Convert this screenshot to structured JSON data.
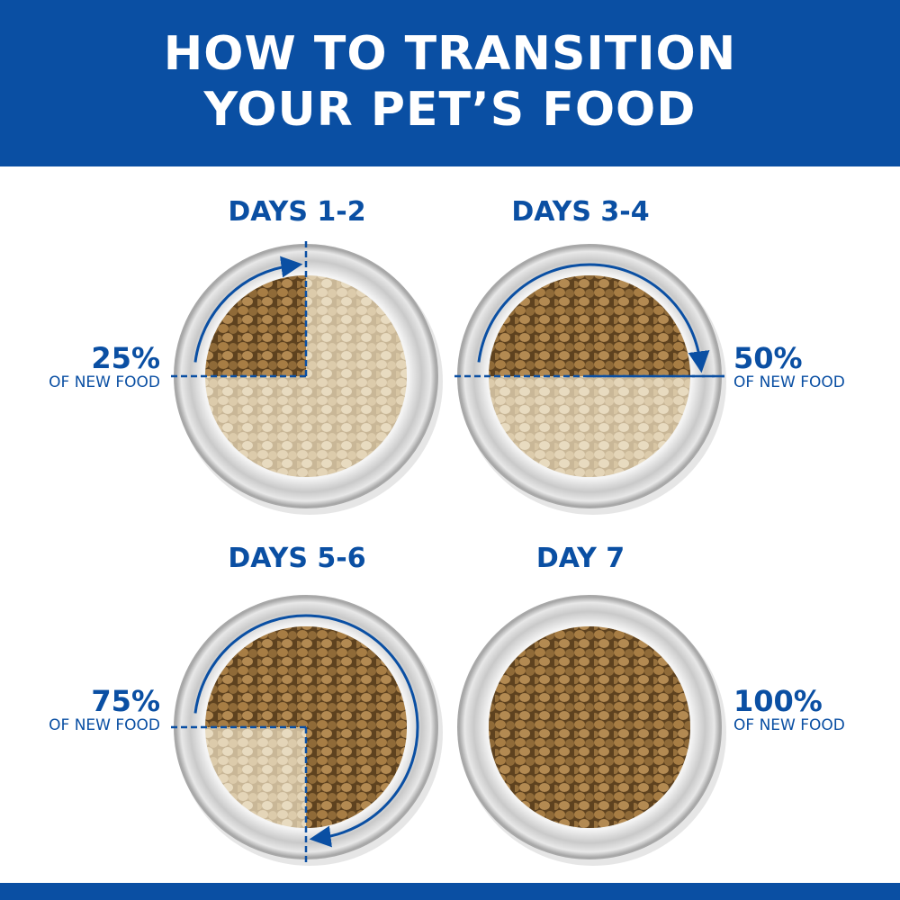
{
  "header": {
    "line1": "HOW TO TRANSITION",
    "line2": "YOUR PET’S FOOD"
  },
  "colors": {
    "brand_blue": "#0a4fa3",
    "new_food": "#8b6433",
    "old_food": "#dccbab"
  },
  "steps": [
    {
      "days": "DAYS 1-2",
      "percent": "25%",
      "caption": "OF NEW FOOD",
      "fraction": 0.25
    },
    {
      "days": "DAYS 3-4",
      "percent": "50%",
      "caption": "OF NEW FOOD",
      "fraction": 0.5
    },
    {
      "days": "DAYS 5-6",
      "percent": "75%",
      "caption": "OF NEW FOOD",
      "fraction": 0.75
    },
    {
      "days": "DAY 7",
      "percent": "100%",
      "caption": "OF  NEW FOOD",
      "fraction": 1.0
    }
  ]
}
